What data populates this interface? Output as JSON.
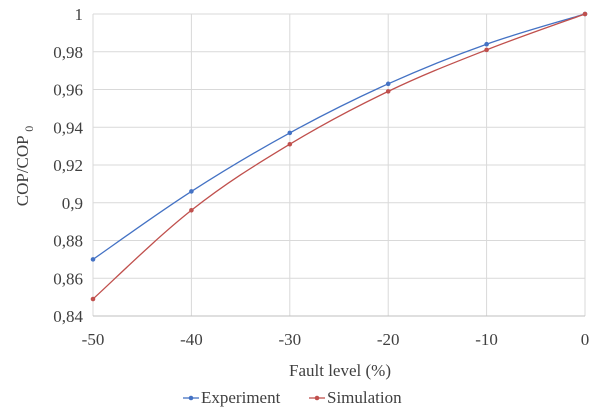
{
  "chart_data": {
    "type": "line",
    "title": "",
    "xlabel": "Fault level (%)",
    "ylabel": {
      "main": "COP/COP",
      "subscript": "0"
    },
    "x": [
      -50,
      -40,
      -30,
      -20,
      -10,
      0
    ],
    "xlim": [
      -50,
      0
    ],
    "ylim": [
      0.84,
      1.0
    ],
    "xticks": [
      "-50",
      "-40",
      "-30",
      "-20",
      "-10",
      "0"
    ],
    "yticks": [
      "0,84",
      "0,86",
      "0,88",
      "0,9",
      "0,92",
      "0,94",
      "0,96",
      "0,98",
      "1"
    ],
    "grid": true,
    "legend_position": "bottom",
    "series": [
      {
        "name": "Experiment",
        "color": "#4472C4",
        "values": [
          0.87,
          0.906,
          0.937,
          0.963,
          0.984,
          1.0
        ]
      },
      {
        "name": "Simulation",
        "color": "#C0504D",
        "values": [
          0.849,
          0.896,
          0.931,
          0.959,
          0.981,
          1.0
        ]
      }
    ]
  }
}
